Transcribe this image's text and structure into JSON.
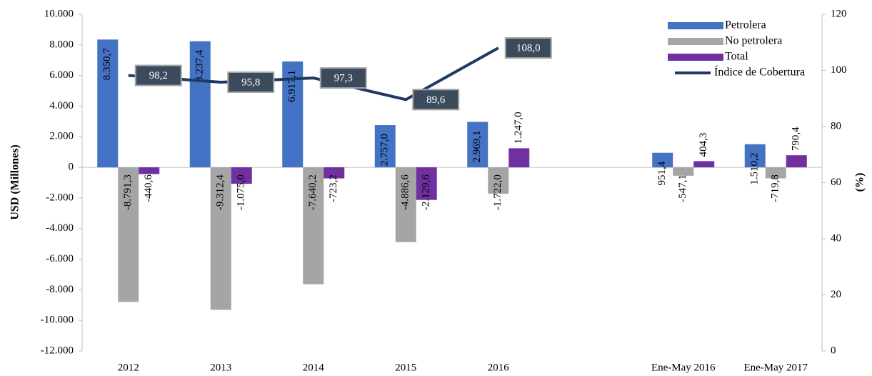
{
  "chart_data": {
    "type": "bar",
    "categories": [
      "2012",
      "2013",
      "2014",
      "2015",
      "2016",
      null,
      "Ene-May 2016",
      "Ene-May 2017"
    ],
    "series": [
      {
        "name": "Petrolera",
        "color": "#4472c4",
        "values": [
          8350.7,
          8237.4,
          6917.1,
          2757.0,
          2969.1,
          null,
          951.4,
          1510.2
        ],
        "value_labels": [
          "8.350,7",
          "8.237,4",
          "6.917,1",
          "2.757,0",
          "2.969,1",
          null,
          "951,4",
          "1.510,2"
        ]
      },
      {
        "name": "No petrolera",
        "color": "#a5a5a5",
        "values": [
          -8791.3,
          -9312.4,
          -7640.2,
          -4886.6,
          -1722.0,
          null,
          -547.1,
          -719.8
        ],
        "value_labels": [
          "-8.791,3",
          "-9.312,4",
          "-7.640,2",
          "-4.886,6",
          "-1.722,0",
          null,
          "-547,1",
          "-719,8"
        ]
      },
      {
        "name": "Total",
        "color": "#7030a0",
        "values": [
          -440.6,
          -1075.0,
          -723.2,
          -2129.6,
          1247.0,
          null,
          404.3,
          790.4
        ],
        "value_labels": [
          "-440,6",
          "-1.075,0",
          "-723,2",
          "-2.129,6",
          "1.247,0",
          null,
          "404,3",
          "790,4"
        ]
      },
      {
        "name": "Índice de Cobertura",
        "color": "#1f3864",
        "type": "line",
        "axis": "y2",
        "values": [
          98.2,
          95.8,
          97.3,
          89.6,
          108.0,
          null,
          null,
          null
        ],
        "value_labels": [
          "98,2",
          "95,8",
          "97,3",
          "89,6",
          "108,0",
          null,
          null,
          null
        ]
      }
    ],
    "ylabel": "USD (Millones)",
    "y2label": "(%)",
    "ylim": [
      -12000,
      10000
    ],
    "yticks": [
      {
        "value": -12000,
        "label": "-12.000"
      },
      {
        "value": -10000,
        "label": "-10.000"
      },
      {
        "value": -8000,
        "label": "-8.000"
      },
      {
        "value": -6000,
        "label": "-6.000"
      },
      {
        "value": -4000,
        "label": "-4.000"
      },
      {
        "value": -2000,
        "label": "-2.000"
      },
      0,
      {
        "value": 2000,
        "label": "2.000"
      },
      {
        "value": 4000,
        "label": "4.000"
      },
      {
        "value": 6000,
        "label": "6.000"
      },
      {
        "value": 8000,
        "label": "8.000"
      },
      {
        "value": 10000,
        "label": "10.000"
      }
    ],
    "y2lim": [
      0,
      120
    ],
    "y2ticks": [
      0,
      20,
      40,
      60,
      80,
      100,
      120
    ],
    "legend": "top-right"
  }
}
